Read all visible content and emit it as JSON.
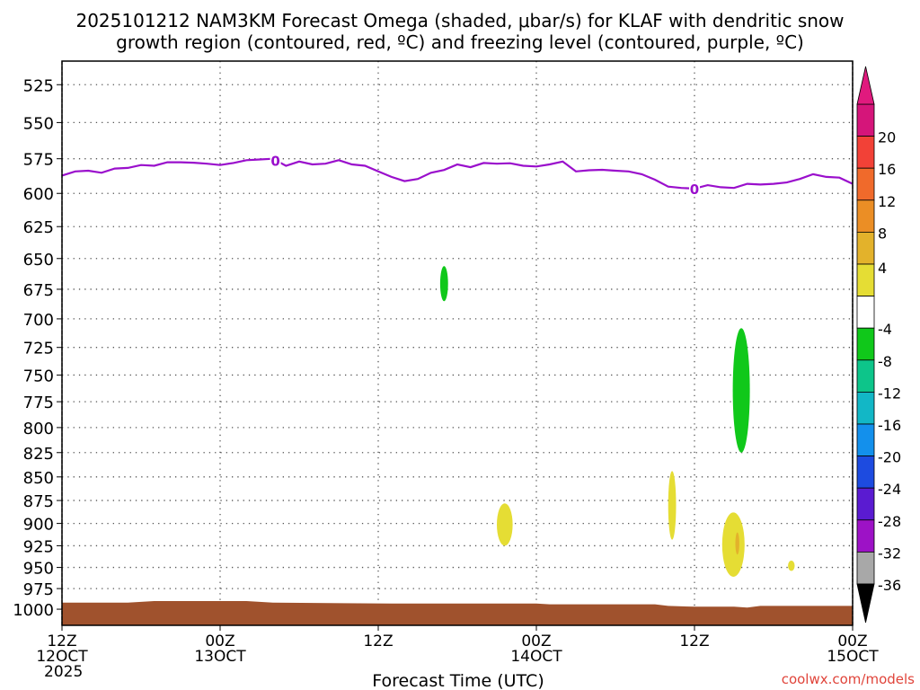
{
  "chart_data": {
    "type": "contour",
    "title": [
      "2025101212 NAM3KM Forecast Omega (shaded, μbar/s) for KLAF with dendritic snow",
      "growth region (contoured, red, ºC) and freezing level (contoured, purple, ºC)"
    ],
    "xlabel": "Forecast Time (UTC)",
    "credit": "coolwx.com/models",
    "x_range_hours": [
      0,
      60
    ],
    "y_axis": {
      "type": "log-pressure",
      "range_hpa": [
        510,
        1020
      ],
      "reversed": true,
      "ticks": [
        525,
        550,
        575,
        600,
        625,
        650,
        675,
        700,
        725,
        750,
        775,
        800,
        825,
        850,
        875,
        900,
        925,
        950,
        975,
        1000
      ]
    },
    "x_ticks": [
      {
        "hour": 0,
        "line1": "12Z",
        "line2": "12OCT",
        "line3": "2025"
      },
      {
        "hour": 12,
        "line1": "00Z",
        "line2": "13OCT",
        "line3": ""
      },
      {
        "hour": 24,
        "line1": "12Z",
        "line2": "",
        "line3": ""
      },
      {
        "hour": 36,
        "line1": "00Z",
        "line2": "14OCT",
        "line3": ""
      },
      {
        "hour": 48,
        "line1": "12Z",
        "line2": "",
        "line3": ""
      },
      {
        "hour": 60,
        "line1": "00Z",
        "line2": "15OCT",
        "line3": ""
      }
    ],
    "colorbar": {
      "labels": [
        "20",
        "16",
        "12",
        "8",
        "4",
        "-4",
        "-8",
        "-12",
        "-16",
        "-20",
        "-24",
        "-28",
        "-32",
        "-36"
      ],
      "bins": [
        {
          "lower": 20,
          "upper": 24,
          "color": "#d5157a"
        },
        {
          "lower": 16,
          "upper": 20,
          "color": "#f24137"
        },
        {
          "lower": 12,
          "upper": 16,
          "color": "#f06a2b"
        },
        {
          "lower": 8,
          "upper": 12,
          "color": "#eb8e25"
        },
        {
          "lower": 4,
          "upper": 8,
          "color": "#e3b22b"
        },
        {
          "lower": 0,
          "upper": 4,
          "color": "#e5dd34"
        },
        {
          "lower": -4,
          "upper": 0,
          "color": "#ffffff"
        },
        {
          "lower": -8,
          "upper": -4,
          "color": "#10c81a"
        },
        {
          "lower": -12,
          "upper": -8,
          "color": "#0dc58a"
        },
        {
          "lower": -16,
          "upper": -12,
          "color": "#12b7c6"
        },
        {
          "lower": -20,
          "upper": -16,
          "color": "#1390ec"
        },
        {
          "lower": -24,
          "upper": -20,
          "color": "#1d4be0"
        },
        {
          "lower": -28,
          "upper": -24,
          "color": "#5a1bd1"
        },
        {
          "lower": -32,
          "upper": -28,
          "color": "#9d12c6"
        },
        {
          "lower": -36,
          "upper": -32,
          "color": "#a8a8a8"
        }
      ],
      "top_arrow_color": "#e01a7e",
      "bottom_arrow_color": "#000000"
    },
    "freezing_level": {
      "label": "0",
      "color": "#9a0fcc",
      "label_hours": [
        16.2,
        48
      ],
      "points": [
        [
          0,
          587
        ],
        [
          1,
          584
        ],
        [
          2,
          583.5
        ],
        [
          3,
          585
        ],
        [
          4,
          582
        ],
        [
          5,
          581.5
        ],
        [
          6,
          579.5
        ],
        [
          7,
          580
        ],
        [
          8,
          577.5
        ],
        [
          9,
          577.5
        ],
        [
          10,
          577.8
        ],
        [
          11,
          578.5
        ],
        [
          12,
          579.5
        ],
        [
          13,
          578
        ],
        [
          14,
          576
        ],
        [
          15,
          575.5
        ],
        [
          16,
          575
        ],
        [
          17,
          580
        ],
        [
          18,
          577
        ],
        [
          19,
          579
        ],
        [
          20,
          578.5
        ],
        [
          21,
          576
        ],
        [
          22,
          579
        ],
        [
          23,
          580
        ],
        [
          24,
          584
        ],
        [
          25,
          588
        ],
        [
          26,
          591
        ],
        [
          27,
          589.5
        ],
        [
          28,
          585
        ],
        [
          29,
          583
        ],
        [
          30,
          579
        ],
        [
          31,
          581
        ],
        [
          32,
          578
        ],
        [
          33,
          578.5
        ],
        [
          34,
          578.2
        ],
        [
          35,
          580
        ],
        [
          36,
          580.5
        ],
        [
          37,
          579
        ],
        [
          38,
          577
        ],
        [
          39,
          584
        ],
        [
          40,
          583.2
        ],
        [
          41,
          582.9
        ],
        [
          42,
          583.5
        ],
        [
          43,
          584
        ],
        [
          44,
          586
        ],
        [
          45,
          590
        ],
        [
          46,
          595
        ],
        [
          47,
          596
        ],
        [
          48,
          596.5
        ],
        [
          49,
          594
        ],
        [
          50,
          595.5
        ],
        [
          51,
          596
        ],
        [
          52,
          593
        ],
        [
          53,
          593.5
        ],
        [
          54,
          593
        ],
        [
          55,
          592
        ],
        [
          56,
          589.5
        ],
        [
          57,
          586
        ],
        [
          58,
          588
        ],
        [
          59,
          588.5
        ],
        [
          60,
          593
        ]
      ]
    },
    "shaded_regions": [
      {
        "value_bin": "-8 to -4",
        "color": "#10c81a",
        "hours": [
          28.7,
          29.3
        ],
        "pressure_hpa": [
          656,
          685
        ]
      },
      {
        "value_bin": "-8 to -4",
        "color": "#10c81a",
        "hours": [
          50.9,
          52.2
        ],
        "pressure_hpa": [
          708,
          825
        ]
      },
      {
        "value_bin": "0 to 4",
        "color": "#e5dd34",
        "hours": [
          33.0,
          34.2
        ],
        "pressure_hpa": [
          878,
          925
        ]
      },
      {
        "value_bin": "0 to 4",
        "color": "#e5dd34",
        "hours": [
          46.0,
          46.6
        ],
        "pressure_hpa": [
          844,
          918
        ]
      },
      {
        "value_bin": "0 to 4",
        "color": "#e5dd34",
        "hours": [
          50.1,
          51.8
        ],
        "pressure_hpa": [
          888,
          961
        ]
      },
      {
        "value_bin": "4 to 8",
        "color": "#e3b22b",
        "hours": [
          51.1,
          51.4
        ],
        "pressure_hpa": [
          910,
          935
        ]
      },
      {
        "value_bin": "0 to 4",
        "color": "#e5dd34",
        "hours": [
          55.1,
          55.6
        ],
        "pressure_hpa": [
          942,
          954
        ]
      }
    ],
    "terrain": {
      "color": "#a0522d",
      "surface_pressure_hpa": [
        [
          0,
          992
        ],
        [
          5,
          992
        ],
        [
          6,
          991
        ],
        [
          7,
          990
        ],
        [
          14,
          990
        ],
        [
          15,
          991
        ],
        [
          16,
          992
        ],
        [
          25,
          993
        ],
        [
          36,
          993
        ],
        [
          37,
          994
        ],
        [
          45,
          994
        ],
        [
          46,
          996
        ],
        [
          48,
          997
        ],
        [
          51,
          997
        ],
        [
          52,
          998
        ],
        [
          53,
          996
        ],
        [
          60,
          996
        ]
      ]
    }
  }
}
